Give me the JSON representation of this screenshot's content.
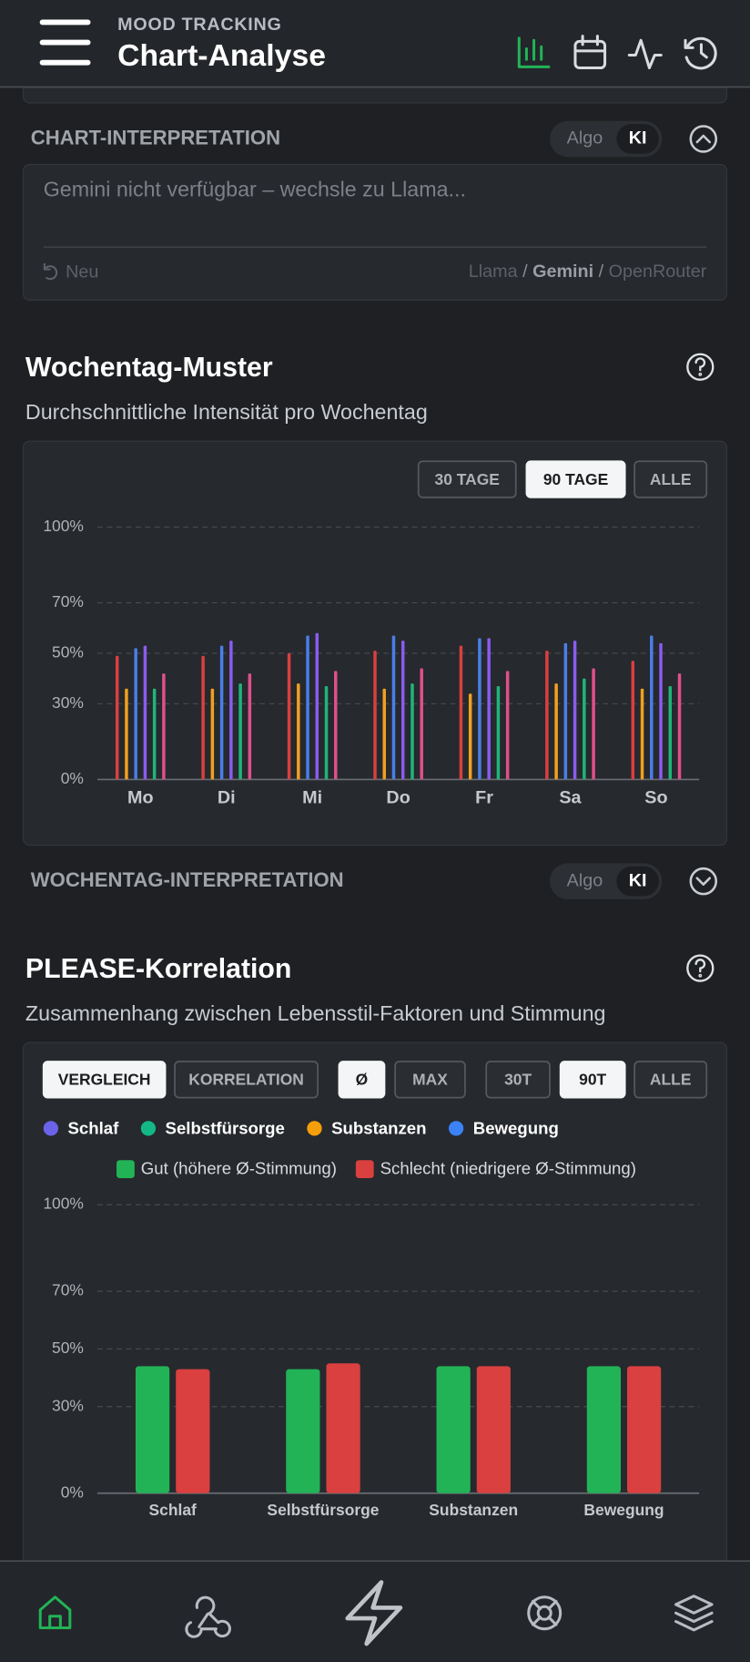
{
  "header": {
    "section": "MOOD TRACKING",
    "title": "Chart-Analyse"
  },
  "chart_interpretation": {
    "title": "CHART-INTERPRETATION",
    "toggle": [
      "Algo",
      "KI"
    ],
    "placeholder": "Gemini nicht verfügbar – wechsle zu Llama...",
    "refresh": "Neu",
    "providers": [
      "Llama",
      "Gemini",
      "OpenRouter"
    ],
    "separator": "/"
  },
  "weekday_interpretation": {
    "title": "WOCHENTAG-INTERPRETATION",
    "toggle": [
      "Algo",
      "KI"
    ]
  },
  "chart_data": [
    {
      "type": "bar",
      "title": "Wochentag-Muster",
      "subtitle": "Durchschnittliche Intensität pro Wochentag",
      "ranges": [
        "30 TAGE",
        "90 TAGE",
        "ALLE"
      ],
      "categories": [
        "Mo",
        "Di",
        "Mi",
        "Do",
        "Fr",
        "Sa",
        "So"
      ],
      "series": [
        {
          "color": "#d9403f",
          "values": [
            49,
            49,
            50,
            51,
            53,
            51,
            47
          ]
        },
        {
          "color": "#f0a020",
          "values": [
            36,
            36,
            38,
            36,
            34,
            38,
            36
          ]
        },
        {
          "color": "#4a7ee8",
          "values": [
            52,
            53,
            57,
            57,
            56,
            54,
            57
          ]
        },
        {
          "color": "#8a5cf0",
          "values": [
            53,
            55,
            58,
            55,
            56,
            55,
            54
          ]
        },
        {
          "color": "#20b57a",
          "values": [
            36,
            38,
            37,
            38,
            37,
            40,
            37
          ]
        },
        {
          "color": "#e0508a",
          "values": [
            42,
            42,
            43,
            44,
            43,
            44,
            42
          ]
        }
      ],
      "ylim": [
        0,
        100
      ],
      "yticks": [
        {
          "value": 0,
          "label": "0%"
        },
        {
          "value": 30,
          "label": "30%"
        },
        {
          "value": 50,
          "label": "50%"
        },
        {
          "value": 70,
          "label": "70%"
        },
        {
          "value": 100,
          "label": "100%"
        }
      ],
      "grid": true
    },
    {
      "type": "bar",
      "title": "PLEASE-Korrelation",
      "subtitle": "Zusammenhang zwischen Lebensstil-Faktoren und Stimmung",
      "modes": [
        "VERGLEICH",
        "KORRELATION"
      ],
      "metrics": [
        "Ø",
        "MAX"
      ],
      "ranges": [
        "30T",
        "90T",
        "ALLE"
      ],
      "factor_legend": [
        {
          "name": "Schlaf",
          "color": "#6b63e8"
        },
        {
          "name": "Selbstfürsorge",
          "color": "#14b886"
        },
        {
          "name": "Substanzen",
          "color": "#f59e0b"
        },
        {
          "name": "Bewegung",
          "color": "#3b82f6"
        }
      ],
      "categories": [
        "Schlaf",
        "Selbstfürsorge",
        "Substanzen",
        "Bewegung"
      ],
      "series": [
        {
          "name": "Gut (höhere Ø-Stimmung)",
          "color": "#22b357",
          "values": [
            44,
            43,
            44,
            44
          ]
        },
        {
          "name": "Schlecht (niedrigere Ø-Stimmung)",
          "color": "#d9403f",
          "values": [
            43,
            45,
            44,
            44
          ]
        }
      ],
      "ylim": [
        0,
        100
      ],
      "yticks": [
        {
          "value": 0,
          "label": "0%"
        },
        {
          "value": 30,
          "label": "30%"
        },
        {
          "value": 50,
          "label": "50%"
        },
        {
          "value": 70,
          "label": "70%"
        },
        {
          "value": 100,
          "label": "100%"
        }
      ],
      "grid": true
    }
  ]
}
